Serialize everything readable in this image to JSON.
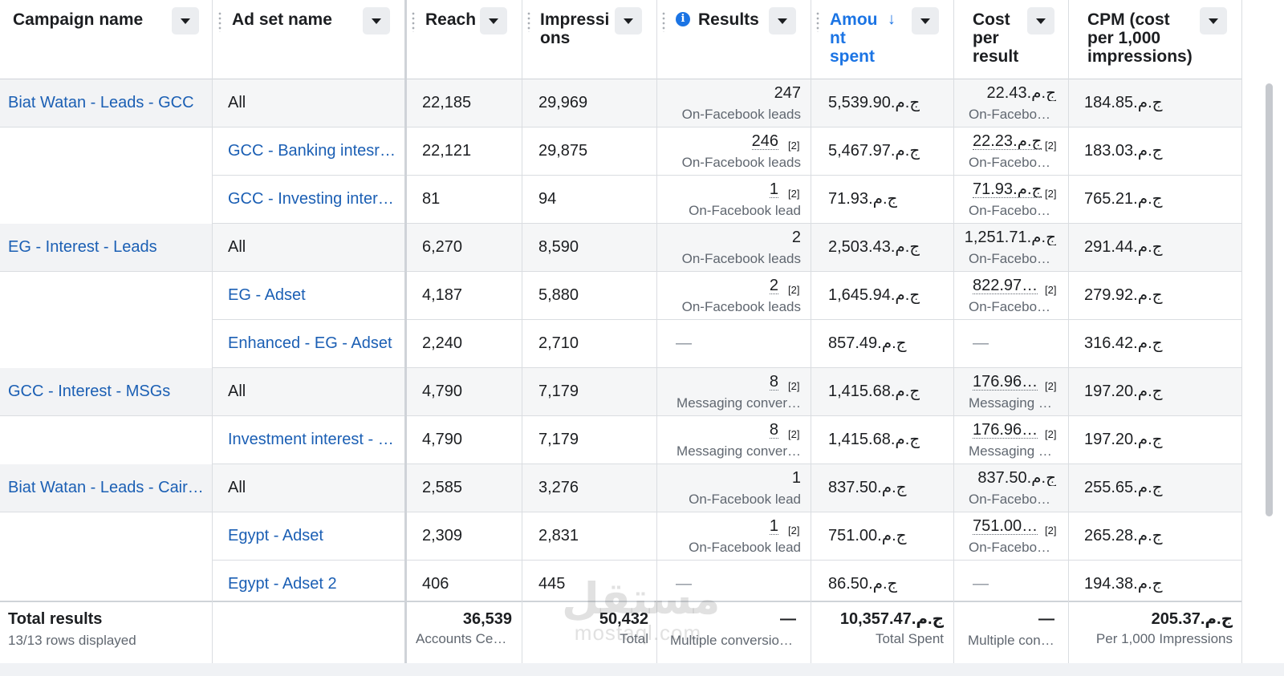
{
  "columns": [
    {
      "key": "campaign",
      "label": "Campaign name"
    },
    {
      "key": "adset",
      "label": "Ad set name"
    },
    {
      "key": "reach",
      "label": "Reach"
    },
    {
      "key": "impressions",
      "label": "Impressi\nons"
    },
    {
      "key": "results",
      "label": "Results"
    },
    {
      "key": "amount",
      "label": "Amou\nnt\nspent",
      "sorted": "descending"
    },
    {
      "key": "cost",
      "label": "Cost\nper\nresult"
    },
    {
      "key": "cpm",
      "label": "CPM (cost\nper 1,000\nimpressions)"
    }
  ],
  "rows": [
    {
      "type": "parent",
      "campaign": "Biat Watan - Leads - GCC",
      "adset": "All",
      "adset_link": false,
      "reach": "22,185",
      "impressions": "29,969",
      "results": "247",
      "results_fn": "",
      "results_sub": "On-Facebook leads",
      "amount": "ج.م.5,539.90",
      "cost": "ج.م.22.43",
      "cost_fn": "",
      "cost_sub": "On-Faceboo…",
      "cpm": "ج.م.184.85"
    },
    {
      "type": "child",
      "campaign": "",
      "adset": "GCC - Banking intesr…",
      "adset_link": true,
      "reach": "22,121",
      "impressions": "29,875",
      "results": "246",
      "results_fn": "[2]",
      "results_sub": "On-Facebook leads",
      "amount": "ج.م.5,467.97",
      "cost": "ج.م.22.23",
      "cost_fn": "[2]",
      "cost_sub": "On-Faceboo…",
      "cpm": "ج.م.183.03"
    },
    {
      "type": "child",
      "campaign": "",
      "adset": "GCC - Investing inter…",
      "adset_link": true,
      "reach": "81",
      "impressions": "94",
      "results": "1",
      "results_fn": "[2]",
      "results_sub": "On-Facebook lead",
      "amount": "ج.م.71.93",
      "cost": "ج.م.71.93",
      "cost_fn": "[2]",
      "cost_sub": "On-Faceboo…",
      "cpm": "ج.م.765.21"
    },
    {
      "type": "parent",
      "campaign": "EG - Interest - Leads",
      "adset": "All",
      "adset_link": false,
      "reach": "6,270",
      "impressions": "8,590",
      "results": "2",
      "results_fn": "",
      "results_sub": "On-Facebook leads",
      "amount": "ج.م.2,503.43",
      "cost": "ج.م.1,251.71",
      "cost_fn": "",
      "cost_sub": "On-Faceboo…",
      "cpm": "ج.م.291.44"
    },
    {
      "type": "child",
      "campaign": "",
      "adset": "EG - Adset",
      "adset_link": true,
      "reach": "4,187",
      "impressions": "5,880",
      "results": "2",
      "results_fn": "[2]",
      "results_sub": "On-Facebook leads",
      "amount": "ج.م.1,645.94",
      "cost": "822.97…",
      "cost_fn": "[2]",
      "cost_sub": "On-Faceboo…",
      "cpm": "ج.م.279.92"
    },
    {
      "type": "child",
      "campaign": "",
      "adset": "Enhanced - EG - Adset",
      "adset_link": true,
      "reach": "2,240",
      "impressions": "2,710",
      "results": "—",
      "results_fn": "",
      "results_sub": "",
      "amount": "ج.م.857.49",
      "cost": "—",
      "cost_fn": "",
      "cost_sub": "",
      "cpm": "ج.م.316.42"
    },
    {
      "type": "parent",
      "campaign": "GCC - Interest - MSGs",
      "adset": "All",
      "adset_link": false,
      "reach": "4,790",
      "impressions": "7,179",
      "results": "8",
      "results_fn": "[2]",
      "results_sub": "Messaging conver…",
      "amount": "ج.م.1,415.68",
      "cost": "176.96…",
      "cost_fn": "[2]",
      "cost_sub": "Messaging …",
      "cpm": "ج.م.197.20"
    },
    {
      "type": "child",
      "campaign": "",
      "adset": "Investment interest - …",
      "adset_link": true,
      "reach": "4,790",
      "impressions": "7,179",
      "results": "8",
      "results_fn": "[2]",
      "results_sub": "Messaging conver…",
      "amount": "ج.م.1,415.68",
      "cost": "176.96…",
      "cost_fn": "[2]",
      "cost_sub": "Messaging …",
      "cpm": "ج.م.197.20"
    },
    {
      "type": "parent",
      "campaign": "Biat Watan - Leads - Cair…",
      "adset": "All",
      "adset_link": false,
      "reach": "2,585",
      "impressions": "3,276",
      "results": "1",
      "results_fn": "",
      "results_sub": "On-Facebook lead",
      "amount": "ج.م.837.50",
      "cost": "ج.م.837.50",
      "cost_fn": "",
      "cost_sub": "On-Faceboo…",
      "cpm": "ج.م.255.65"
    },
    {
      "type": "child",
      "campaign": "",
      "adset": "Egypt - Adset",
      "adset_link": true,
      "reach": "2,309",
      "impressions": "2,831",
      "results": "1",
      "results_fn": "[2]",
      "results_sub": "On-Facebook lead",
      "amount": "ج.م.751.00",
      "cost": "751.00…",
      "cost_fn": "[2]",
      "cost_sub": "On-Faceboo…",
      "cpm": "ج.م.265.28"
    },
    {
      "type": "child",
      "campaign": "",
      "adset": "Egypt - Adset 2",
      "adset_link": true,
      "reach": "406",
      "impressions": "445",
      "results": "—",
      "results_fn": "",
      "results_sub": "",
      "amount": "ج.م.86.50",
      "cost": "—",
      "cost_fn": "",
      "cost_sub": "",
      "cpm": "ج.م.194.38"
    }
  ],
  "footer": {
    "title": "Total results",
    "subtitle": "13/13 rows displayed",
    "reach": "36,539",
    "reach_sub": "Accounts Cen…",
    "impressions": "50,432",
    "impressions_sub": "Total",
    "results": "—",
    "results_sub": "Multiple conversio…",
    "amount": "ج.م.10,357.47",
    "amount_sub": "Total Spent",
    "cost": "—",
    "cost_sub": "Multiple con…",
    "cpm": "ج.م.205.37",
    "cpm_sub": "Per 1,000 Impressions"
  },
  "watermark": {
    "arabic": "مستقل",
    "latin": "mostaql.com"
  },
  "colors": {
    "link": "#1b5fb4",
    "sorted_header": "#1b74e4",
    "parent_row_bg": "#f2f3f5"
  }
}
